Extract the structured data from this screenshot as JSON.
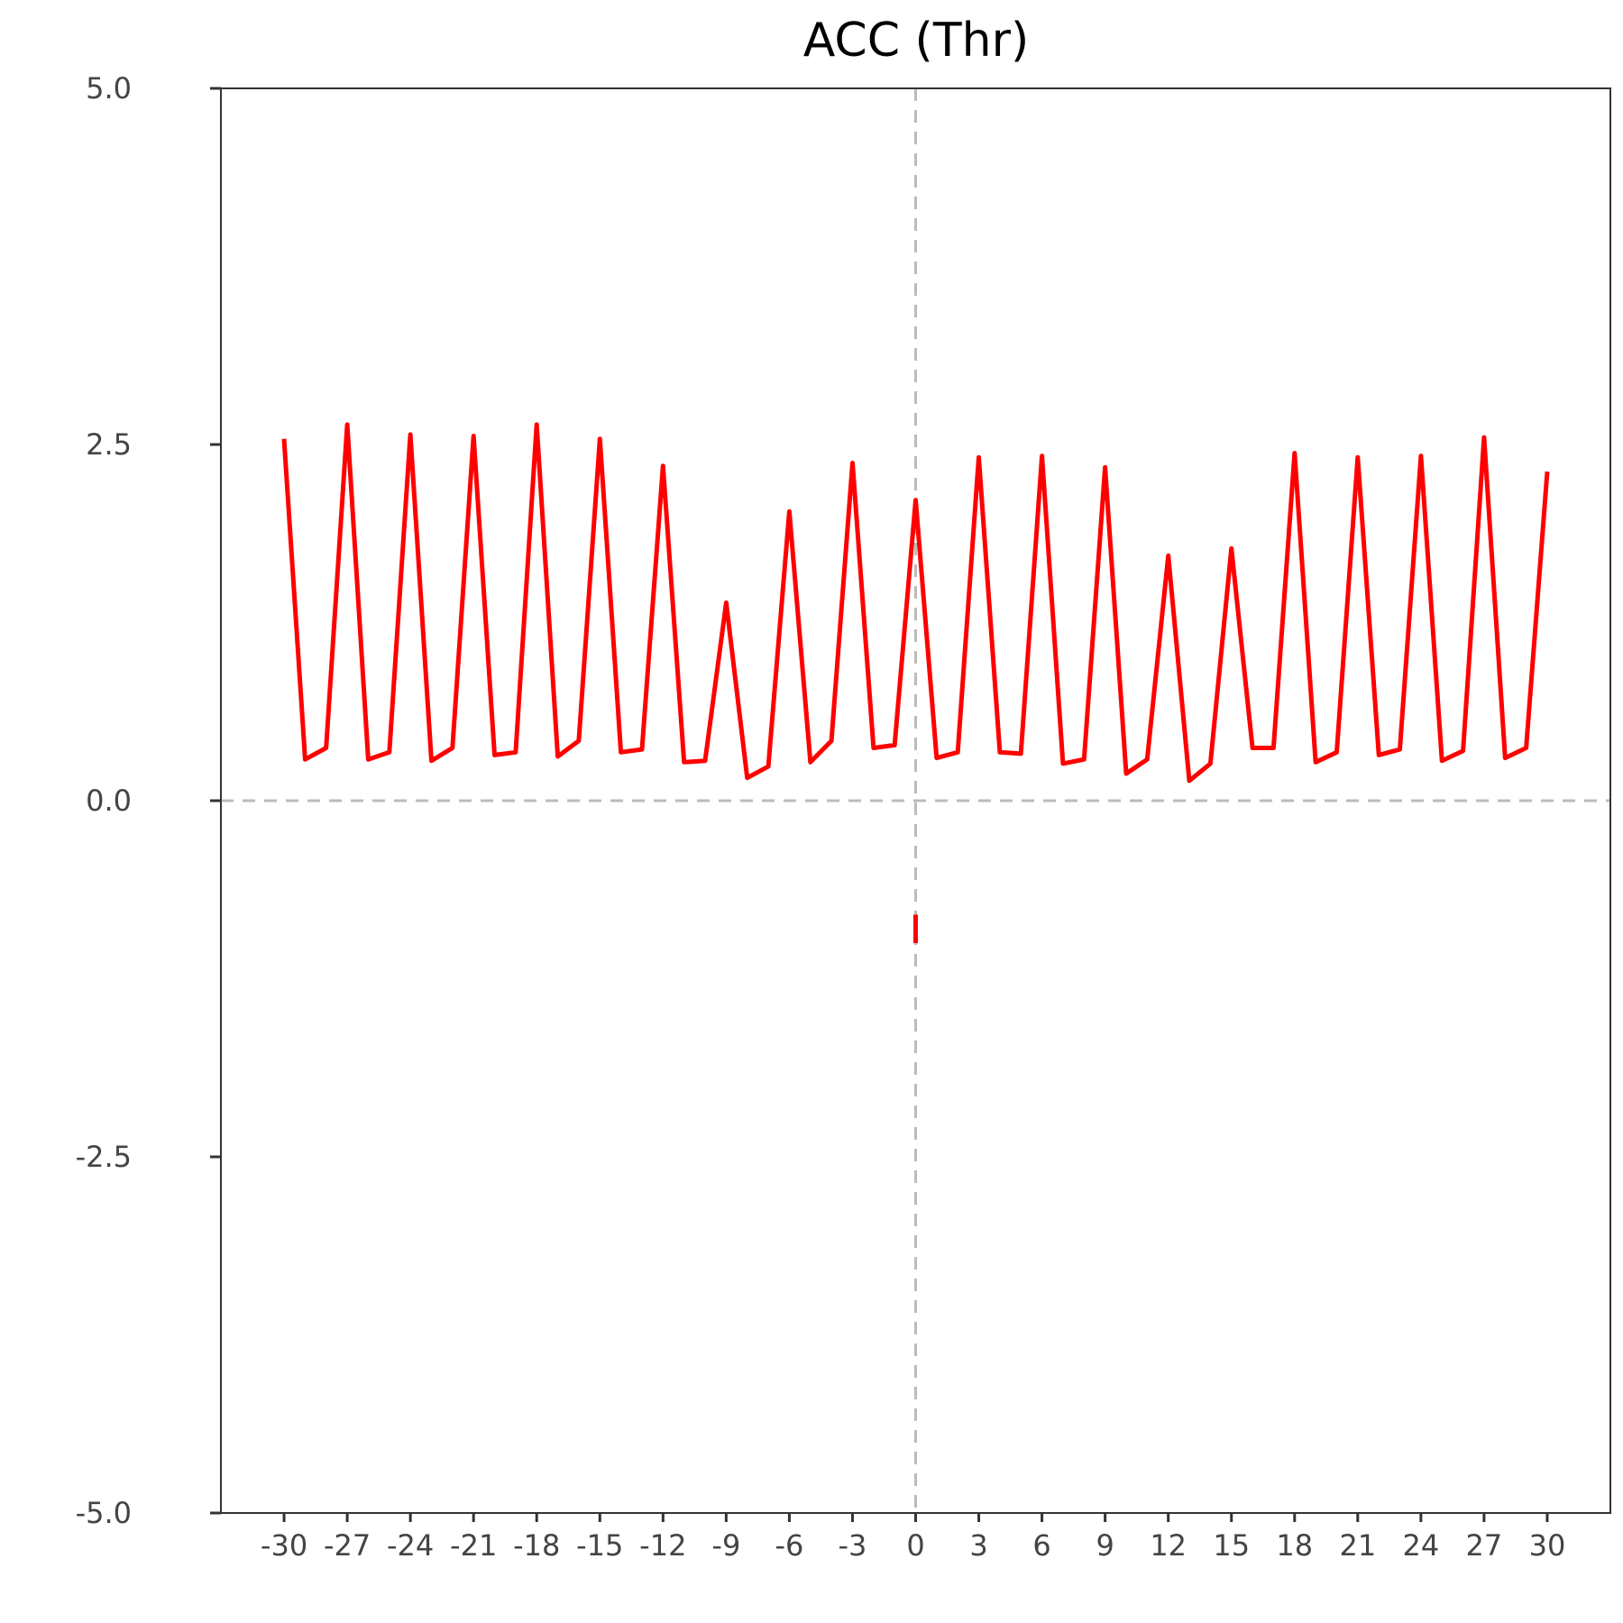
{
  "chart_data": {
    "type": "line",
    "title": "ACC (Thr)",
    "xlabel": "",
    "ylabel": "",
    "xlim": [
      -33,
      33
    ],
    "ylim": [
      -5.0,
      5.0
    ],
    "x_ticks": [
      -30,
      -27,
      -24,
      -21,
      -18,
      -15,
      -12,
      -9,
      -6,
      -3,
      0,
      3,
      6,
      9,
      12,
      15,
      18,
      21,
      24,
      27,
      30
    ],
    "y_ticks": [
      -5.0,
      -2.5,
      0.0,
      2.5,
      5.0
    ],
    "y_tick_labels": [
      "-5.0",
      "-2.5",
      "0.0",
      "2.5",
      "5.0"
    ],
    "reference_lines": {
      "x": 0,
      "y": 0,
      "color": "#bbbbbb",
      "style": "dashed"
    },
    "grid": false,
    "legend": "none",
    "series": [
      {
        "color": "#ff0000",
        "x": [
          -30,
          -29,
          -28,
          -27,
          -26,
          -25,
          -24,
          -23,
          -22,
          -21,
          -20,
          -19,
          -18,
          -17,
          -16,
          -15,
          -14,
          -13,
          -12,
          -11,
          -10,
          -9,
          -8,
          -7,
          -6,
          -5,
          -4,
          -3,
          -2,
          -1,
          0,
          1,
          2,
          3,
          4,
          5,
          6,
          7,
          8,
          9,
          10,
          11,
          12,
          13,
          14,
          15,
          16,
          17,
          18,
          19,
          20,
          21,
          22,
          23,
          24,
          25,
          26,
          27,
          28,
          29,
          30
        ],
        "y": [
          2.54,
          0.29,
          0.37,
          2.64,
          0.29,
          0.34,
          2.57,
          0.28,
          0.37,
          2.56,
          0.32,
          0.34,
          2.64,
          0.31,
          0.42,
          2.54,
          0.34,
          0.36,
          2.35,
          0.27,
          0.28,
          1.39,
          0.16,
          0.24,
          2.03,
          0.27,
          0.42,
          2.37,
          0.37,
          0.39,
          2.11,
          0.3,
          0.34,
          2.41,
          0.34,
          0.33,
          2.42,
          0.26,
          0.29,
          2.34,
          0.19,
          0.29,
          1.72,
          0.14,
          0.26,
          1.77,
          0.37,
          0.37,
          2.44,
          0.27,
          0.34,
          2.41,
          0.32,
          0.36,
          2.42,
          0.28,
          0.35,
          2.55,
          0.3,
          0.37,
          2.31
        ]
      },
      {
        "color": "#ff0000",
        "x": [
          0,
          0
        ],
        "y": [
          -0.8,
          -1.0
        ]
      }
    ]
  }
}
